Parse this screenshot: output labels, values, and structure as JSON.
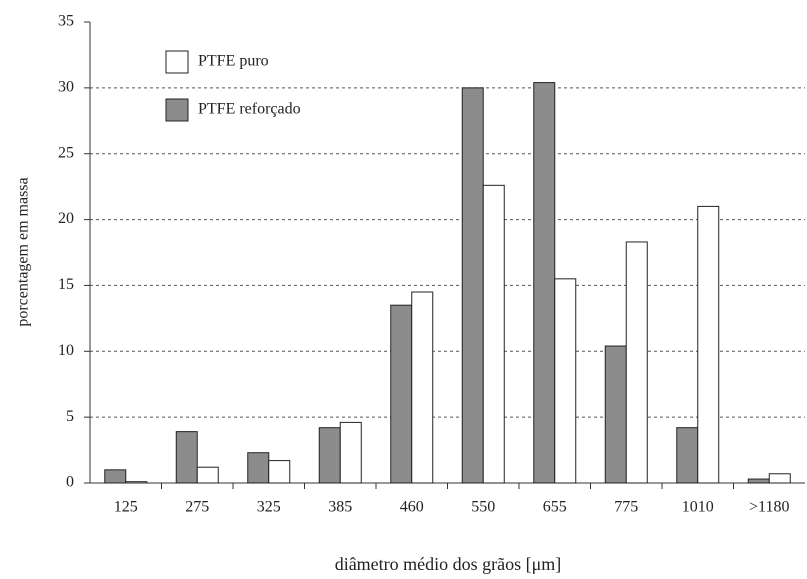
{
  "chart_data": {
    "type": "bar",
    "xlabel": "diâmetro médio dos grãos [μm]",
    "ylabel": "porcentagem em massa",
    "categories": [
      "125",
      "275",
      "325",
      "385",
      "460",
      "550",
      "655",
      "775",
      "1010",
      ">1180"
    ],
    "series": [
      {
        "name": "PTFE puro",
        "color": "#ffffff",
        "values": [
          0.1,
          1.2,
          1.7,
          4.6,
          14.5,
          22.6,
          15.5,
          18.3,
          21.0,
          0.7
        ]
      },
      {
        "name": "PTFE reforçado",
        "color": "#8c8c8c",
        "values": [
          1.0,
          3.9,
          2.3,
          4.2,
          13.5,
          30.0,
          30.4,
          10.4,
          4.2,
          0.3
        ]
      }
    ],
    "ylim": [
      0,
      35
    ],
    "yticks": [
      0,
      5,
      10,
      15,
      20,
      25,
      30,
      35
    ],
    "grid": true
  }
}
